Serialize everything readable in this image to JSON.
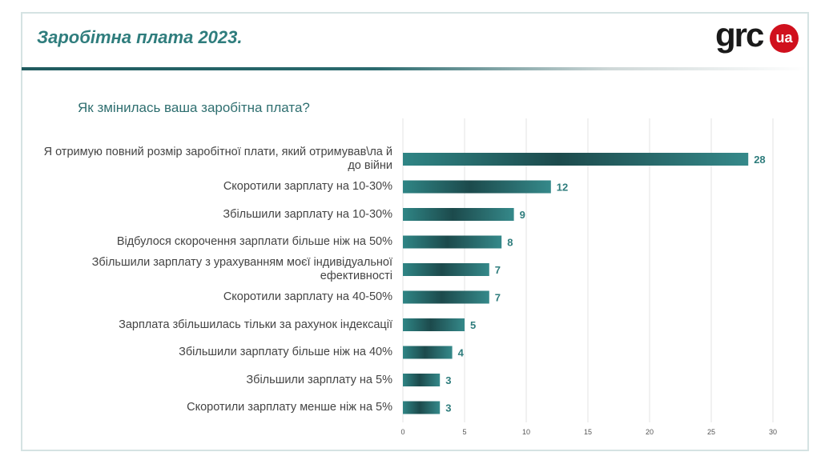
{
  "header": {
    "title": "Заробітна плата 2023.",
    "logo_text": "grc",
    "logo_badge": "ua"
  },
  "question": "Як змінилась ваша заробітна плата?",
  "chart_data": {
    "type": "bar",
    "orientation": "horizontal",
    "categories": [
      "Я отримую повний розмір заробітної плати, який отримував\\ла й до війни",
      "Скоротили зарплату на 10-30%",
      "Збільшили зарплату на 10-30%",
      "Відбулося скорочення зарплати більше ніж на 50%",
      "Збільшили зарплату з урахуванням моєї індивідуальної ефективності",
      "Скоротили зарплату на 40-50%",
      "Зарплата збільшилась тільки за рахунок індексації",
      "Збільшили зарплату більше ніж на 40%",
      "Збільшили зарплату на 5%",
      "Скоротили зарплату менше ніж на 5%"
    ],
    "values": [
      28,
      12,
      9,
      8,
      7,
      7,
      5,
      4,
      3,
      3
    ],
    "xlim": [
      0,
      30
    ],
    "xticks": [
      "0",
      "5",
      "10",
      "15",
      "20",
      "25",
      "30"
    ],
    "grid": true,
    "colors": {
      "bar": "#2f8585",
      "bar_dark": "#1c4a4c",
      "label": "#2f7d7d"
    }
  }
}
